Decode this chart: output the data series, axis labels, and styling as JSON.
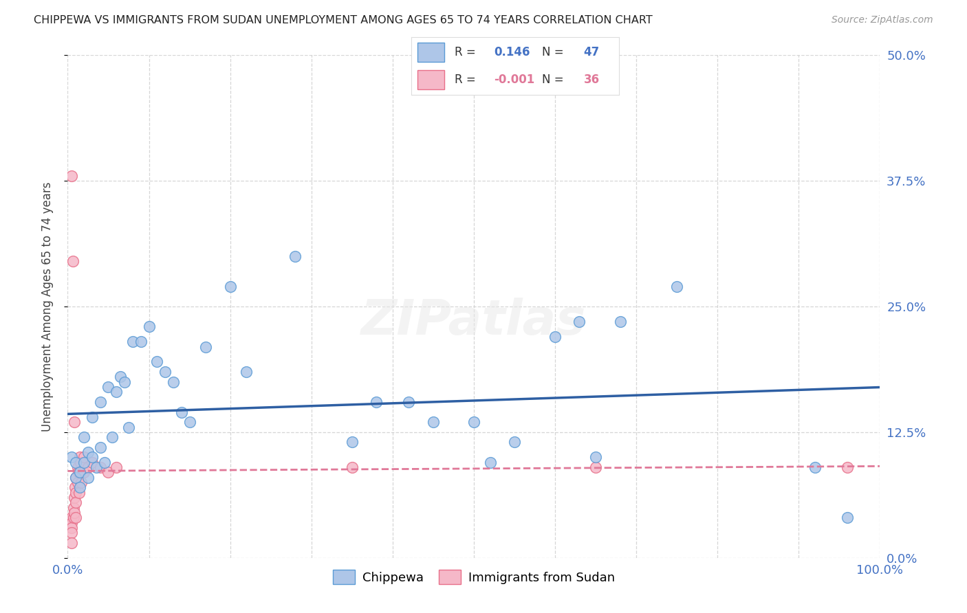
{
  "title": "CHIPPEWA VS IMMIGRANTS FROM SUDAN UNEMPLOYMENT AMONG AGES 65 TO 74 YEARS CORRELATION CHART",
  "source": "Source: ZipAtlas.com",
  "ylabel": "Unemployment Among Ages 65 to 74 years",
  "xlim": [
    0.0,
    1.0
  ],
  "ylim": [
    0.0,
    0.5
  ],
  "yticks": [
    0.0,
    0.125,
    0.25,
    0.375,
    0.5
  ],
  "ytick_labels": [
    "0.0%",
    "12.5%",
    "25.0%",
    "37.5%",
    "50.0%"
  ],
  "xtick_labels_show": [
    "0.0%",
    "100.0%"
  ],
  "background_color": "#ffffff",
  "grid_color": "#cccccc",
  "chippewa_color": "#aec6e8",
  "sudan_color": "#f5b8c8",
  "chippewa_edge_color": "#5b9bd5",
  "sudan_edge_color": "#e8708a",
  "trend_blue_color": "#2e5fa3",
  "trend_pink_color": "#e07898",
  "tick_label_color": "#4472c4",
  "legend_color_blue": "#4472c4",
  "legend_color_pink": "#e07898",
  "chippewa_x": [
    0.005,
    0.01,
    0.01,
    0.015,
    0.015,
    0.02,
    0.02,
    0.025,
    0.025,
    0.03,
    0.03,
    0.035,
    0.04,
    0.04,
    0.045,
    0.05,
    0.055,
    0.06,
    0.065,
    0.07,
    0.075,
    0.08,
    0.09,
    0.1,
    0.11,
    0.12,
    0.13,
    0.14,
    0.15,
    0.17,
    0.2,
    0.22,
    0.28,
    0.35,
    0.38,
    0.42,
    0.45,
    0.5,
    0.52,
    0.55,
    0.6,
    0.63,
    0.65,
    0.68,
    0.75,
    0.92,
    0.96
  ],
  "chippewa_y": [
    0.1,
    0.095,
    0.08,
    0.085,
    0.07,
    0.12,
    0.095,
    0.105,
    0.08,
    0.14,
    0.1,
    0.09,
    0.155,
    0.11,
    0.095,
    0.17,
    0.12,
    0.165,
    0.18,
    0.175,
    0.13,
    0.215,
    0.215,
    0.23,
    0.195,
    0.185,
    0.175,
    0.145,
    0.135,
    0.21,
    0.27,
    0.185,
    0.3,
    0.115,
    0.155,
    0.155,
    0.135,
    0.135,
    0.095,
    0.115,
    0.22,
    0.235,
    0.1,
    0.235,
    0.27,
    0.09,
    0.04
  ],
  "sudan_x": [
    0.005,
    0.005,
    0.005,
    0.005,
    0.005,
    0.007,
    0.007,
    0.008,
    0.008,
    0.009,
    0.01,
    0.01,
    0.01,
    0.01,
    0.012,
    0.012,
    0.013,
    0.014,
    0.015,
    0.015,
    0.016,
    0.017,
    0.018,
    0.02,
    0.02,
    0.025,
    0.03,
    0.04,
    0.05,
    0.06,
    0.005,
    0.006,
    0.008,
    0.35,
    0.65,
    0.96
  ],
  "sudan_y": [
    0.04,
    0.035,
    0.03,
    0.025,
    0.015,
    0.05,
    0.04,
    0.06,
    0.045,
    0.07,
    0.08,
    0.065,
    0.055,
    0.04,
    0.09,
    0.075,
    0.085,
    0.065,
    0.1,
    0.085,
    0.095,
    0.075,
    0.085,
    0.1,
    0.085,
    0.09,
    0.095,
    0.09,
    0.085,
    0.09,
    0.38,
    0.295,
    0.135,
    0.09,
    0.09,
    0.09
  ],
  "marker_size": 130
}
